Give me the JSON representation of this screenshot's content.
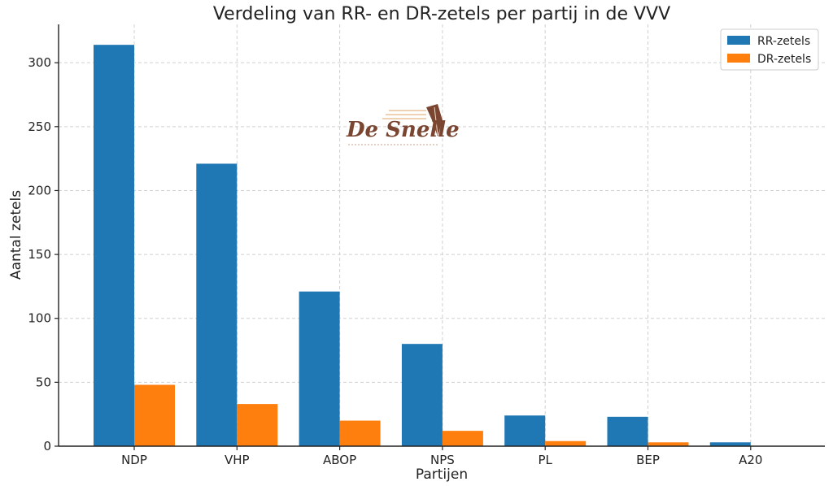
{
  "chart_data": {
    "type": "bar",
    "title": "Verdeling van RR- en DR-zetels per partij in de VVV",
    "xlabel": "Partijen",
    "ylabel": "Aantal zetels",
    "categories": [
      "NDP",
      "VHP",
      "ABOP",
      "NPS",
      "PL",
      "BEP",
      "A20"
    ],
    "series": [
      {
        "name": "RR-zetels",
        "color": "#1f77b4",
        "values": [
          314,
          221,
          121,
          80,
          24,
          23,
          3
        ]
      },
      {
        "name": "DR-zetels",
        "color": "#ff7f0e",
        "values": [
          48,
          33,
          20,
          12,
          4,
          3,
          0
        ]
      }
    ],
    "ylim": [
      0,
      330
    ],
    "yticks": [
      0,
      50,
      100,
      150,
      200,
      250,
      300
    ],
    "grid": true,
    "legend_position": "top-right",
    "watermark": {
      "text": "De Snelle",
      "icon": "quill-pen-icon"
    }
  }
}
